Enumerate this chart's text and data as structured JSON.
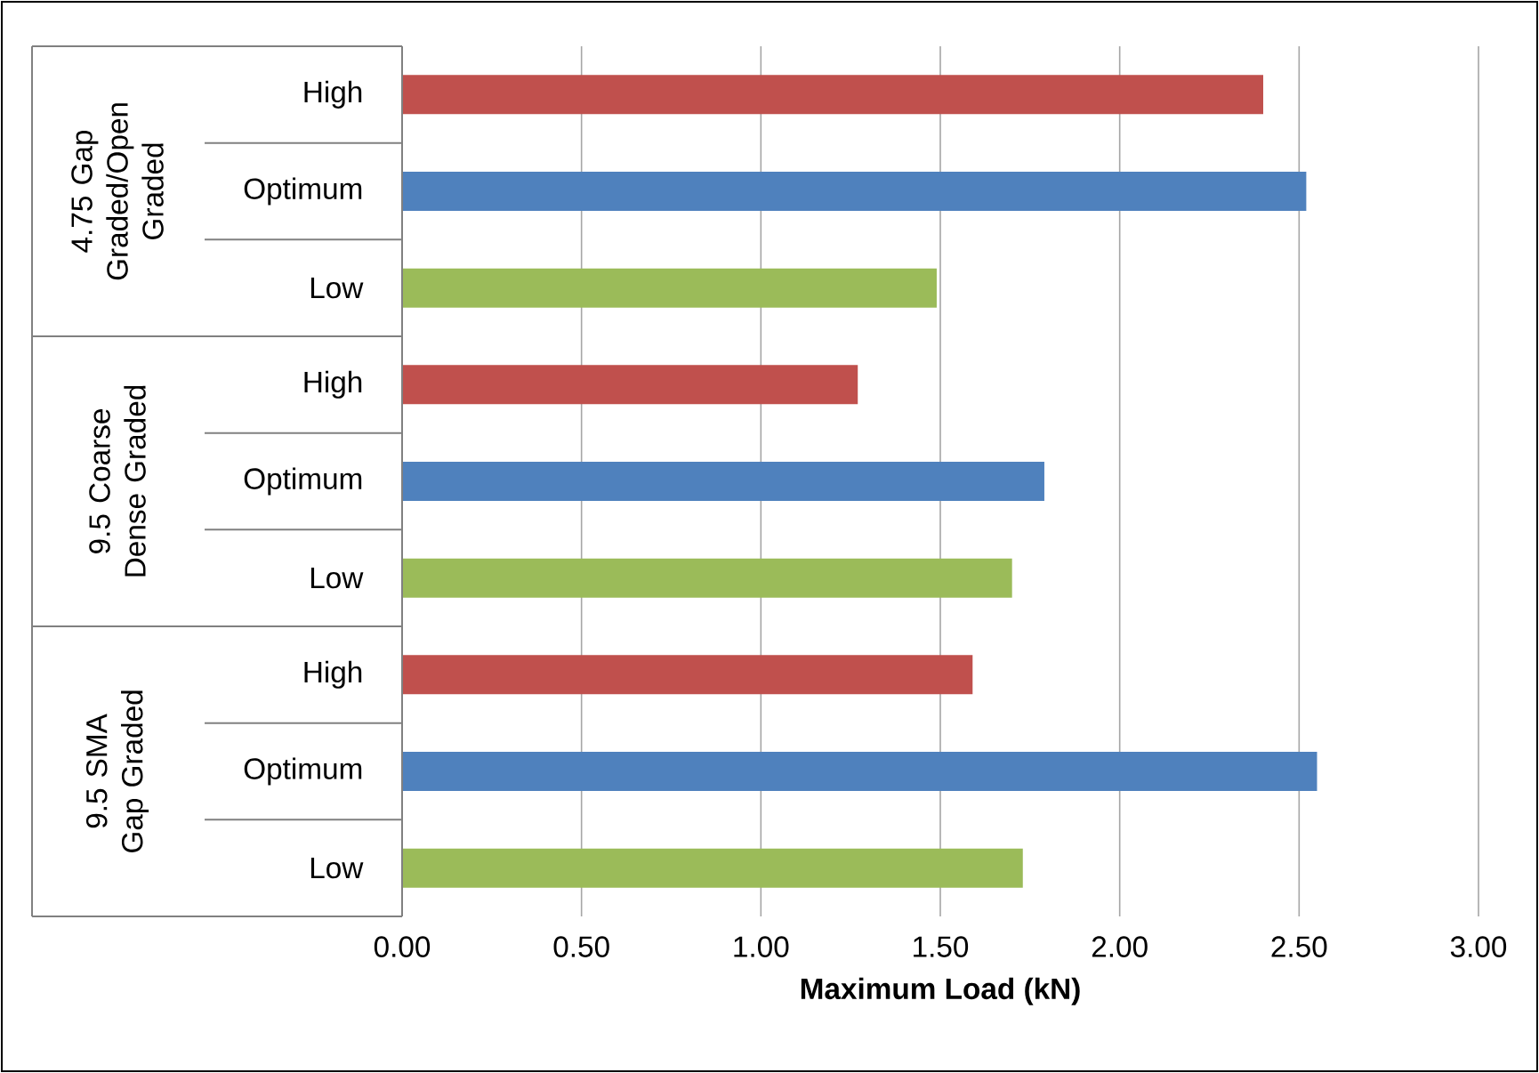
{
  "chart_data": {
    "type": "bar",
    "orientation": "horizontal",
    "categories": [
      "High",
      "Optimum",
      "Low",
      "High",
      "Optimum",
      "Low",
      "High",
      "Optimum",
      "Low"
    ],
    "values": [
      2.4,
      2.52,
      1.49,
      1.27,
      1.79,
      1.7,
      1.59,
      2.55,
      1.73
    ],
    "colors": [
      "#c0504d",
      "#4f81bd",
      "#9bbb59",
      "#c0504d",
      "#4f81bd",
      "#9bbb59",
      "#c0504d",
      "#4f81bd",
      "#9bbb59"
    ],
    "xlim": [
      0,
      3
    ],
    "xticks": [
      {
        "value": 0,
        "label": "0.00"
      },
      {
        "value": 0.5,
        "label": "0.50"
      },
      {
        "value": 1,
        "label": "1.00"
      },
      {
        "value": 1.5,
        "label": "1.50"
      },
      {
        "value": 2,
        "label": "2.00"
      },
      {
        "value": 2.5,
        "label": "2.50"
      },
      {
        "value": 3,
        "label": "3.00"
      }
    ],
    "xlabel": "Maximum Load (kN)",
    "grid": "x",
    "annotations": [
      "4.75 Gap Graded/Open Graded",
      "9.5 Coarse Dense Graded",
      "9.5 SMA Gap Graded"
    ]
  }
}
